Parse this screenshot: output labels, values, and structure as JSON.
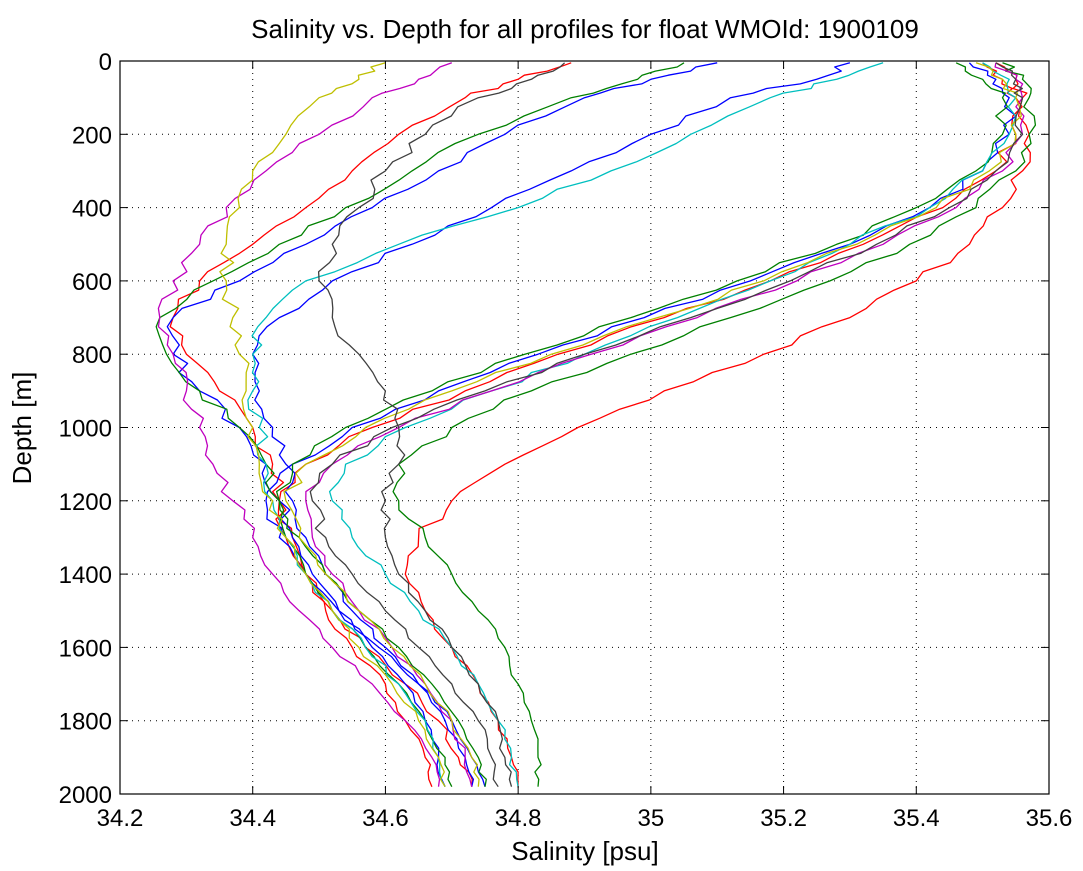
{
  "chart_data": {
    "type": "line",
    "title": "Salinity vs. Depth for all profiles for float WMOId: 1900109",
    "xlabel": "Salinity [psu]",
    "ylabel": "Depth [m]",
    "xlim": [
      34.2,
      35.6
    ],
    "ylim": [
      0,
      2000
    ],
    "y_reversed": true,
    "grid": true,
    "legend": "none",
    "xticks": [
      34.2,
      34.4,
      34.6,
      34.8,
      35,
      35.2,
      35.4,
      35.6
    ],
    "xtick_labels": [
      "34.2",
      "34.4",
      "34.6",
      "34.8",
      "35",
      "35.2",
      "35.4",
      "35.6"
    ],
    "yticks": [
      0,
      200,
      400,
      600,
      800,
      1000,
      1200,
      1400,
      1600,
      1800,
      2000
    ],
    "ytick_labels": [
      "0",
      "200",
      "400",
      "600",
      "800",
      "1000",
      "1200",
      "1400",
      "1600",
      "1800",
      "2000"
    ],
    "depth": [
      5,
      50,
      100,
      200,
      300,
      400,
      500,
      600,
      700,
      800,
      900,
      1000,
      1100,
      1200,
      1300,
      1400,
      1500,
      1600,
      1700,
      1800,
      1900,
      1980
    ],
    "series": [
      {
        "color": "#ff0000",
        "values": [
          35.52,
          35.55,
          35.56,
          35.57,
          35.56,
          35.53,
          35.48,
          35.4,
          35.3,
          35.17,
          35.02,
          34.89,
          34.78,
          34.7,
          34.65,
          34.63,
          34.66,
          34.7,
          34.74,
          34.77,
          34.79,
          34.8
        ]
      },
      {
        "color": "#ff0000",
        "values": [
          34.88,
          34.8,
          34.72,
          34.62,
          34.55,
          34.48,
          34.4,
          34.32,
          34.28,
          34.3,
          34.35,
          34.4,
          34.43,
          34.44,
          34.46,
          34.48,
          34.51,
          34.55,
          34.6,
          34.63,
          34.66,
          34.67
        ]
      },
      {
        "color": "#ff0000",
        "values": [
          35.5,
          35.53,
          35.55,
          35.55,
          35.52,
          35.44,
          35.32,
          35.18,
          35.02,
          34.86,
          34.72,
          34.58,
          34.48,
          34.44,
          34.45,
          34.48,
          34.52,
          34.57,
          34.63,
          34.68,
          34.71,
          34.73
        ]
      },
      {
        "color": "#0000ff",
        "values": [
          35.48,
          35.52,
          35.54,
          35.54,
          35.5,
          35.42,
          35.3,
          35.15,
          34.99,
          34.83,
          34.68,
          34.55,
          34.46,
          34.42,
          34.44,
          34.48,
          34.53,
          34.59,
          34.65,
          34.7,
          34.73,
          34.75
        ]
      },
      {
        "color": "#0000ff",
        "values": [
          35.1,
          35.0,
          34.9,
          34.78,
          34.68,
          34.58,
          34.48,
          34.38,
          34.28,
          34.28,
          34.32,
          34.38,
          34.42,
          34.44,
          34.46,
          34.49,
          34.53,
          34.58,
          34.63,
          34.66,
          34.68,
          34.69
        ]
      },
      {
        "color": "#0000ff",
        "values": [
          35.3,
          35.25,
          35.12,
          35.0,
          34.88,
          34.76,
          34.64,
          34.52,
          34.44,
          34.4,
          34.41,
          34.43,
          34.45,
          34.46,
          34.48,
          34.51,
          34.55,
          34.6,
          34.65,
          34.69,
          34.72,
          34.73
        ]
      },
      {
        "color": "#008000",
        "values": [
          35.53,
          35.56,
          35.57,
          35.57,
          35.55,
          35.49,
          35.39,
          35.27,
          35.12,
          34.97,
          34.82,
          34.7,
          34.62,
          34.62,
          34.66,
          34.7,
          34.74,
          34.78,
          34.8,
          34.82,
          34.83,
          34.83
        ]
      },
      {
        "color": "#008000",
        "values": [
          35.05,
          34.98,
          34.88,
          34.74,
          34.64,
          34.54,
          34.44,
          34.34,
          34.26,
          34.27,
          34.32,
          34.38,
          34.42,
          34.44,
          34.45,
          34.48,
          34.52,
          34.57,
          34.62,
          34.66,
          34.69,
          34.7
        ]
      },
      {
        "color": "#008000",
        "values": [
          35.46,
          35.5,
          35.53,
          35.53,
          35.49,
          35.4,
          35.28,
          35.13,
          34.97,
          34.81,
          34.67,
          34.54,
          34.46,
          34.44,
          34.47,
          34.51,
          34.56,
          34.62,
          34.67,
          34.71,
          34.74,
          34.75
        ]
      },
      {
        "color": "#00bfbf",
        "values": [
          35.5,
          35.54,
          35.55,
          35.54,
          35.5,
          35.42,
          35.3,
          35.18,
          35.04,
          34.9,
          34.76,
          34.63,
          34.54,
          34.52,
          34.55,
          34.6,
          34.65,
          34.7,
          34.74,
          34.77,
          34.79,
          34.8
        ]
      },
      {
        "color": "#00bfbf",
        "values": [
          35.35,
          35.28,
          35.18,
          35.06,
          34.94,
          34.8,
          34.62,
          34.48,
          34.42,
          34.4,
          34.4,
          34.41,
          34.42,
          34.43,
          34.45,
          34.48,
          34.52,
          34.57,
          34.62,
          34.66,
          34.68,
          34.69
        ]
      },
      {
        "color": "#bf00bf",
        "values": [
          34.7,
          34.65,
          34.58,
          34.5,
          34.42,
          34.36,
          34.32,
          34.28,
          34.26,
          34.28,
          34.3,
          34.32,
          34.34,
          34.37,
          34.4,
          34.43,
          34.47,
          34.52,
          34.58,
          34.63,
          34.67,
          34.68
        ]
      },
      {
        "color": "#bf00bf",
        "values": [
          35.52,
          35.55,
          35.56,
          35.56,
          35.53,
          35.46,
          35.35,
          35.22,
          35.07,
          34.91,
          34.76,
          34.62,
          34.52,
          34.48,
          34.49,
          34.52,
          34.56,
          34.61,
          34.66,
          34.7,
          34.72,
          34.73
        ]
      },
      {
        "color": "#bfbf00",
        "values": [
          34.6,
          34.56,
          34.5,
          34.45,
          34.4,
          34.38,
          34.36,
          34.36,
          34.37,
          34.38,
          34.39,
          34.4,
          34.41,
          34.43,
          34.45,
          34.48,
          34.52,
          34.56,
          34.61,
          34.65,
          34.68,
          34.69
        ]
      },
      {
        "color": "#bfbf00",
        "values": [
          35.49,
          35.53,
          35.55,
          35.55,
          35.51,
          35.43,
          35.31,
          35.17,
          35.01,
          34.85,
          34.7,
          34.57,
          34.48,
          34.45,
          34.47,
          34.51,
          34.56,
          34.61,
          34.66,
          34.7,
          34.73,
          34.74
        ]
      },
      {
        "color": "#404040",
        "values": [
          34.87,
          34.82,
          34.74,
          34.66,
          34.6,
          34.56,
          34.52,
          34.5,
          34.52,
          34.56,
          34.6,
          34.62,
          34.62,
          34.6,
          34.6,
          34.62,
          34.66,
          34.7,
          34.74,
          34.77,
          34.78,
          34.79
        ]
      },
      {
        "color": "#404040",
        "values": [
          35.52,
          35.55,
          35.56,
          35.56,
          35.52,
          35.45,
          35.34,
          35.21,
          35.06,
          34.9,
          34.75,
          34.61,
          34.52,
          34.49,
          34.51,
          34.55,
          34.6,
          34.65,
          34.7,
          34.74,
          34.76,
          34.77
        ]
      }
    ]
  }
}
